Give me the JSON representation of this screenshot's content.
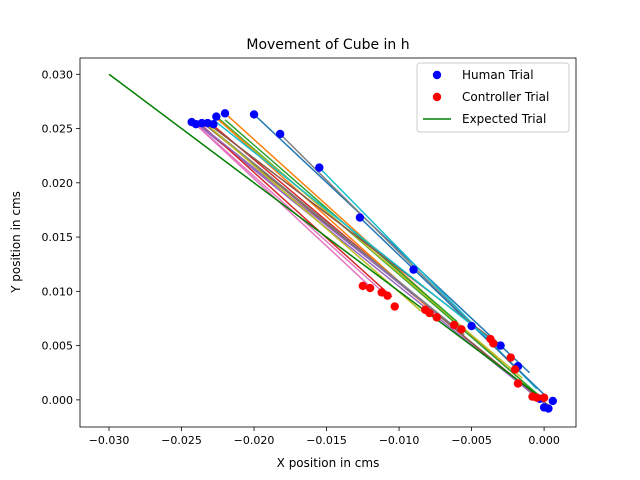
{
  "chart_data": {
    "type": "scatter",
    "title": "Movement of Cube in h",
    "xlabel": "X position in cms",
    "ylabel": "Y position in cms",
    "xlim": [
      -0.032,
      0.0022
    ],
    "ylim": [
      -0.0025,
      0.0315
    ],
    "xticks": [
      -0.03,
      -0.025,
      -0.02,
      -0.015,
      -0.01,
      -0.005,
      0.0
    ],
    "xtick_labels": [
      "−0.030",
      "−0.025",
      "−0.020",
      "−0.015",
      "−0.010",
      "−0.005",
      "0.000"
    ],
    "yticks": [
      0.0,
      0.005,
      0.01,
      0.015,
      0.02,
      0.025,
      0.03
    ],
    "ytick_labels": [
      "0.000",
      "0.005",
      "0.010",
      "0.015",
      "0.020",
      "0.025",
      "0.030"
    ],
    "grid": false,
    "legend": {
      "position": "top-right",
      "entries": [
        {
          "label": "Human Trial",
          "kind": "marker",
          "color": "#0000ff"
        },
        {
          "label": "Controller Trial",
          "kind": "marker",
          "color": "#ff0000"
        },
        {
          "label": "Expected Trial",
          "kind": "line",
          "color": "#008000"
        }
      ]
    },
    "expected_trial": {
      "color": "#008000",
      "points": [
        [
          -0.03,
          0.03
        ],
        [
          0.0,
          0.0
        ]
      ]
    },
    "trial_lines": [
      {
        "color": "#1f77b4",
        "points": [
          [
            -0.02,
            0.0263
          ],
          [
            -0.001,
            0.0025
          ]
        ]
      },
      {
        "color": "#ff7f0e",
        "points": [
          [
            -0.022,
            0.0264
          ],
          [
            -0.0005,
            0.0005
          ]
        ]
      },
      {
        "color": "#2ca02c",
        "points": [
          [
            -0.0225,
            0.026
          ],
          [
            0.0,
            0.0
          ]
        ]
      },
      {
        "color": "#d62728",
        "points": [
          [
            -0.023,
            0.0255
          ],
          [
            -0.0005,
            0.0002
          ]
        ]
      },
      {
        "color": "#9467bd",
        "points": [
          [
            -0.024,
            0.0255
          ],
          [
            0.0,
            -0.0003
          ]
        ]
      },
      {
        "color": "#8c564b",
        "points": [
          [
            -0.0235,
            0.0255
          ],
          [
            0.0003,
            -0.0005
          ]
        ]
      },
      {
        "color": "#e377c2",
        "points": [
          [
            -0.0242,
            0.0256
          ],
          [
            -0.0118,
            0.0102
          ]
        ]
      },
      {
        "color": "#7f7f7f",
        "points": [
          [
            -0.0182,
            0.0245
          ],
          [
            -0.002,
            0.003
          ]
        ]
      },
      {
        "color": "#bcbd22",
        "points": [
          [
            -0.0228,
            0.0262
          ],
          [
            -0.0015,
            0.002
          ]
        ]
      },
      {
        "color": "#17becf",
        "points": [
          [
            -0.0155,
            0.0214
          ],
          [
            -0.0005,
            0.001
          ]
        ]
      },
      {
        "color": "#1f77b4",
        "points": [
          [
            -0.0127,
            0.0168
          ],
          [
            0.0,
            0.0005
          ]
        ]
      },
      {
        "color": "#ff7f0e",
        "points": [
          [
            -0.0226,
            0.026
          ],
          [
            -0.008,
            0.0085
          ]
        ]
      },
      {
        "color": "#2ca02c",
        "points": [
          [
            -0.022,
            0.0258
          ],
          [
            -0.006,
            0.0072
          ]
        ]
      },
      {
        "color": "#d62728",
        "points": [
          [
            -0.0236,
            0.0253
          ],
          [
            -0.0105,
            0.0095
          ]
        ]
      },
      {
        "color": "#9467bd",
        "points": [
          [
            -0.0238,
            0.0254
          ],
          [
            -0.0072,
            0.0078
          ]
        ]
      },
      {
        "color": "#8c564b",
        "points": [
          [
            -0.0233,
            0.0256
          ],
          [
            -0.0035,
            0.0055
          ]
        ]
      },
      {
        "color": "#e377c2",
        "points": [
          [
            -0.024,
            0.0254
          ],
          [
            -0.011,
            0.0098
          ]
        ]
      },
      {
        "color": "#7f7f7f",
        "points": [
          [
            -0.0235,
            0.0256
          ],
          [
            -0.0055,
            0.006
          ]
        ]
      },
      {
        "color": "#bcbd22",
        "points": [
          [
            -0.0232,
            0.0253
          ],
          [
            -0.0085,
            0.0082
          ]
        ]
      },
      {
        "color": "#17becf",
        "points": [
          [
            -0.0228,
            0.0258
          ],
          [
            -0.003,
            0.0048
          ]
        ]
      }
    ],
    "series": [
      {
        "name": "Human Trial",
        "color": "#0000ff",
        "points": [
          [
            -0.0243,
            0.0256
          ],
          [
            -0.024,
            0.0254
          ],
          [
            -0.0236,
            0.0255
          ],
          [
            -0.0232,
            0.0255
          ],
          [
            -0.0228,
            0.0254
          ],
          [
            -0.0226,
            0.0261
          ],
          [
            -0.022,
            0.0264
          ],
          [
            -0.02,
            0.0263
          ],
          [
            -0.0182,
            0.0245
          ],
          [
            -0.0155,
            0.0214
          ],
          [
            -0.0127,
            0.0168
          ],
          [
            -0.009,
            0.012
          ],
          [
            -0.005,
            0.0068
          ],
          [
            -0.003,
            0.005
          ],
          [
            -0.0018,
            0.0031
          ],
          [
            0.0,
            -0.0007
          ],
          [
            0.0003,
            -0.0008
          ],
          [
            0.0006,
            -0.0001
          ],
          [
            -0.0003,
            0.0001
          ]
        ]
      },
      {
        "name": "Controller Trial",
        "color": "#ff0000",
        "points": [
          [
            -0.0125,
            0.0105
          ],
          [
            -0.012,
            0.0103
          ],
          [
            -0.0112,
            0.0099
          ],
          [
            -0.0108,
            0.0096
          ],
          [
            -0.0103,
            0.0086
          ],
          [
            -0.0082,
            0.0083
          ],
          [
            -0.0079,
            0.008
          ],
          [
            -0.0074,
            0.0076
          ],
          [
            -0.0062,
            0.0069
          ],
          [
            -0.0057,
            0.0065
          ],
          [
            -0.0037,
            0.0056
          ],
          [
            -0.0035,
            0.0052
          ],
          [
            -0.0023,
            0.0039
          ],
          [
            -0.002,
            0.0028
          ],
          [
            -0.0018,
            0.0015
          ],
          [
            -0.0008,
            0.0003
          ],
          [
            -0.0005,
            0.0002
          ],
          [
            0.0,
            0.0002
          ]
        ]
      }
    ]
  }
}
